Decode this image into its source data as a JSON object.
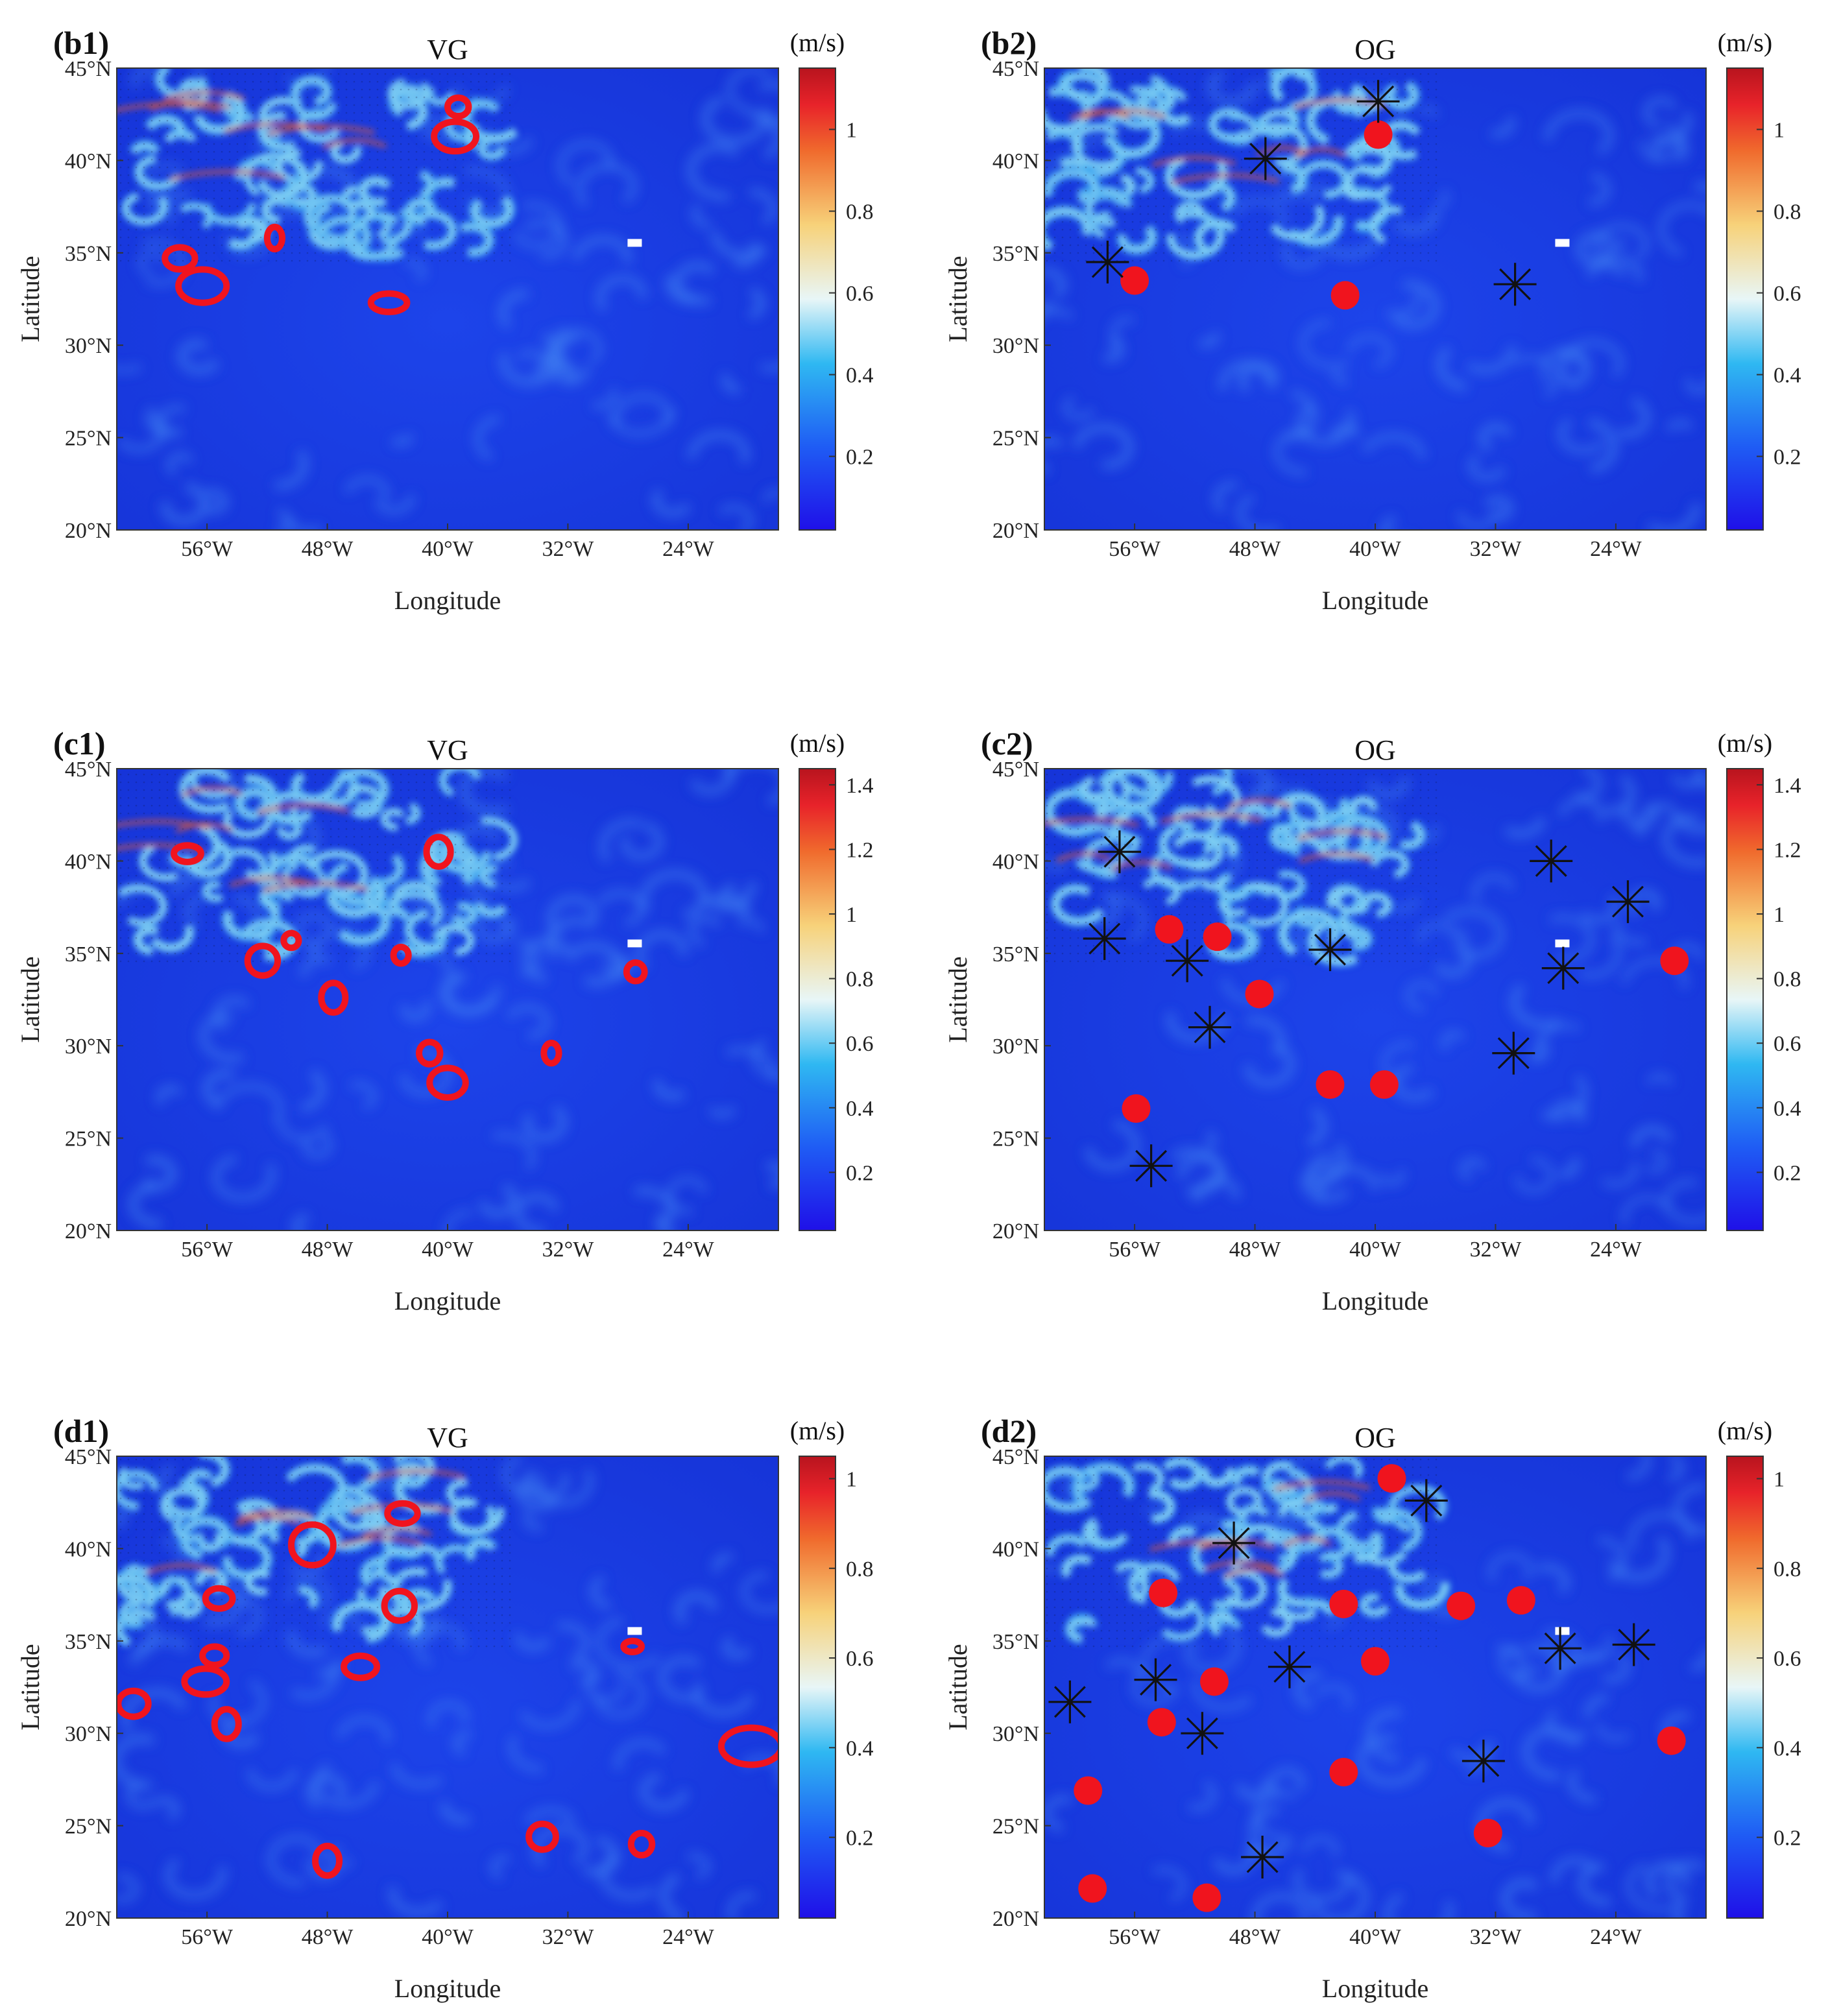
{
  "colors": {
    "ocean_base": "#1a3de6",
    "ocean_deep": "#1228c8",
    "filament_mid": "#3aa6ef",
    "filament_light": "#9fe4f5",
    "filament_hot": "#e85a2a",
    "eddy_red": "#f0141e",
    "asterisk": "#111111"
  },
  "chart_data": [
    {
      "id": "b1",
      "panel_label": "(b1)",
      "title": "VG",
      "unit": "(m/s)",
      "type": "map",
      "xlabel": "Longitude",
      "ylabel": "Latitude",
      "xlim": [
        -62,
        -18
      ],
      "ylim": [
        20,
        45
      ],
      "xticks": [
        {
          "v": -56,
          "label": "56°W"
        },
        {
          "v": -48,
          "label": "48°W"
        },
        {
          "v": -40,
          "label": "40°W"
        },
        {
          "v": -32,
          "label": "32°W"
        },
        {
          "v": -24,
          "label": "24°W"
        }
      ],
      "yticks": [
        {
          "v": 20,
          "label": "20°N"
        },
        {
          "v": 25,
          "label": "25°N"
        },
        {
          "v": 30,
          "label": "30°N"
        },
        {
          "v": 35,
          "label": "35°N"
        },
        {
          "v": 40,
          "label": "40°N"
        },
        {
          "v": 45,
          "label": "45°N"
        }
      ],
      "colorbar": {
        "vmax": 1.15,
        "ticks": [
          0.2,
          0.4,
          0.6,
          0.8,
          1
        ]
      },
      "rings": [
        {
          "lon": -57.8,
          "lat": 34.7,
          "rx": 1.0,
          "ry": 0.6
        },
        {
          "lon": -56.3,
          "lat": 33.2,
          "rx": 1.6,
          "ry": 0.9
        },
        {
          "lon": -51.5,
          "lat": 35.8,
          "rx": 0.5,
          "ry": 0.6
        },
        {
          "lon": -43.9,
          "lat": 32.3,
          "rx": 1.2,
          "ry": 0.5
        },
        {
          "lon": -39.5,
          "lat": 41.3,
          "rx": 1.4,
          "ry": 0.8
        },
        {
          "lon": -39.3,
          "lat": 42.9,
          "rx": 0.7,
          "ry": 0.5
        }
      ],
      "dots": [],
      "stars": []
    },
    {
      "id": "b2",
      "panel_label": "(b2)",
      "title": "OG",
      "unit": "(m/s)",
      "type": "map",
      "xlabel": "Longitude",
      "ylabel": "Latitude",
      "xlim": [
        -62,
        -18
      ],
      "ylim": [
        20,
        45
      ],
      "xticks": [
        {
          "v": -56,
          "label": "56°W"
        },
        {
          "v": -48,
          "label": "48°W"
        },
        {
          "v": -40,
          "label": "40°W"
        },
        {
          "v": -32,
          "label": "32°W"
        },
        {
          "v": -24,
          "label": "24°W"
        }
      ],
      "yticks": [
        {
          "v": 20,
          "label": "20°N"
        },
        {
          "v": 25,
          "label": "25°N"
        },
        {
          "v": 30,
          "label": "30°N"
        },
        {
          "v": 35,
          "label": "35°N"
        },
        {
          "v": 40,
          "label": "40°N"
        },
        {
          "v": 45,
          "label": "45°N"
        }
      ],
      "colorbar": {
        "vmax": 1.15,
        "ticks": [
          0.2,
          0.4,
          0.6,
          0.8,
          1
        ]
      },
      "rings": [],
      "dots": [
        {
          "lon": -56.0,
          "lat": 33.5
        },
        {
          "lon": -42.0,
          "lat": 32.7
        },
        {
          "lon": -39.8,
          "lat": 41.4
        }
      ],
      "stars": [
        {
          "lon": -57.8,
          "lat": 34.5
        },
        {
          "lon": -47.3,
          "lat": 40.1
        },
        {
          "lon": -39.8,
          "lat": 43.2
        },
        {
          "lon": -30.7,
          "lat": 33.3
        }
      ]
    },
    {
      "id": "c1",
      "panel_label": "(c1)",
      "title": "VG",
      "unit": "(m/s)",
      "type": "map",
      "xlabel": "Longitude",
      "ylabel": "Latitude",
      "xlim": [
        -62,
        -18
      ],
      "ylim": [
        20,
        45
      ],
      "xticks": [
        {
          "v": -56,
          "label": "56°W"
        },
        {
          "v": -48,
          "label": "48°W"
        },
        {
          "v": -40,
          "label": "40°W"
        },
        {
          "v": -32,
          "label": "32°W"
        },
        {
          "v": -24,
          "label": "24°W"
        }
      ],
      "yticks": [
        {
          "v": 20,
          "label": "20°N"
        },
        {
          "v": 25,
          "label": "25°N"
        },
        {
          "v": 30,
          "label": "30°N"
        },
        {
          "v": 35,
          "label": "35°N"
        },
        {
          "v": 40,
          "label": "40°N"
        },
        {
          "v": 45,
          "label": "45°N"
        }
      ],
      "colorbar": {
        "vmax": 1.45,
        "ticks": [
          0.2,
          0.4,
          0.6,
          0.8,
          1,
          1.2,
          1.4
        ]
      },
      "rings": [
        {
          "lon": -57.3,
          "lat": 40.4,
          "rx": 0.9,
          "ry": 0.45
        },
        {
          "lon": -50.4,
          "lat": 35.7,
          "rx": 0.5,
          "ry": 0.4
        },
        {
          "lon": -52.3,
          "lat": 34.6,
          "rx": 1.0,
          "ry": 0.8
        },
        {
          "lon": -47.6,
          "lat": 32.6,
          "rx": 0.8,
          "ry": 0.8
        },
        {
          "lon": -43.1,
          "lat": 34.9,
          "rx": 0.5,
          "ry": 0.45
        },
        {
          "lon": -40.6,
          "lat": 40.5,
          "rx": 0.8,
          "ry": 0.8
        },
        {
          "lon": -41.2,
          "lat": 29.6,
          "rx": 0.7,
          "ry": 0.6
        },
        {
          "lon": -40.0,
          "lat": 28.0,
          "rx": 1.2,
          "ry": 0.8
        },
        {
          "lon": -33.1,
          "lat": 29.6,
          "rx": 0.5,
          "ry": 0.55
        },
        {
          "lon": -27.5,
          "lat": 34.0,
          "rx": 0.6,
          "ry": 0.5
        }
      ],
      "dots": [],
      "stars": []
    },
    {
      "id": "c2",
      "panel_label": "(c2)",
      "title": "OG",
      "unit": "(m/s)",
      "type": "map",
      "xlabel": "Longitude",
      "ylabel": "Latitude",
      "xlim": [
        -62,
        -18
      ],
      "ylim": [
        20,
        45
      ],
      "xticks": [
        {
          "v": -56,
          "label": "56°W"
        },
        {
          "v": -48,
          "label": "48°W"
        },
        {
          "v": -40,
          "label": "40°W"
        },
        {
          "v": -32,
          "label": "32°W"
        },
        {
          "v": -24,
          "label": "24°W"
        }
      ],
      "yticks": [
        {
          "v": 20,
          "label": "20°N"
        },
        {
          "v": 25,
          "label": "25°N"
        },
        {
          "v": 30,
          "label": "30°N"
        },
        {
          "v": 35,
          "label": "35°N"
        },
        {
          "v": 40,
          "label": "40°N"
        },
        {
          "v": 45,
          "label": "45°N"
        }
      ],
      "colorbar": {
        "vmax": 1.45,
        "ticks": [
          0.2,
          0.4,
          0.6,
          0.8,
          1,
          1.2,
          1.4
        ]
      },
      "rings": [],
      "dots": [
        {
          "lon": -53.7,
          "lat": 36.3
        },
        {
          "lon": -50.5,
          "lat": 35.9
        },
        {
          "lon": -47.7,
          "lat": 32.8
        },
        {
          "lon": -43.0,
          "lat": 27.9
        },
        {
          "lon": -39.4,
          "lat": 27.9
        },
        {
          "lon": -55.9,
          "lat": 26.6
        },
        {
          "lon": -20.1,
          "lat": 34.6
        }
      ],
      "stars": [
        {
          "lon": -57.0,
          "lat": 40.5
        },
        {
          "lon": -58.0,
          "lat": 35.8
        },
        {
          "lon": -52.5,
          "lat": 34.6
        },
        {
          "lon": -51.0,
          "lat": 31.0
        },
        {
          "lon": -43.0,
          "lat": 35.2
        },
        {
          "lon": -30.8,
          "lat": 29.6
        },
        {
          "lon": -28.3,
          "lat": 40.0
        },
        {
          "lon": -27.5,
          "lat": 34.2
        },
        {
          "lon": -23.2,
          "lat": 37.8
        },
        {
          "lon": -54.9,
          "lat": 23.5
        }
      ]
    },
    {
      "id": "d1",
      "panel_label": "(d1)",
      "title": "VG",
      "unit": "(m/s)",
      "type": "map",
      "xlabel": "Longitude",
      "ylabel": "Latitude",
      "xlim": [
        -62,
        -18
      ],
      "ylim": [
        20,
        45
      ],
      "xticks": [
        {
          "v": -56,
          "label": "56°W"
        },
        {
          "v": -48,
          "label": "48°W"
        },
        {
          "v": -40,
          "label": "40°W"
        },
        {
          "v": -32,
          "label": "32°W"
        },
        {
          "v": -24,
          "label": "24°W"
        }
      ],
      "yticks": [
        {
          "v": 20,
          "label": "20°N"
        },
        {
          "v": 25,
          "label": "25°N"
        },
        {
          "v": 30,
          "label": "30°N"
        },
        {
          "v": 35,
          "label": "35°N"
        },
        {
          "v": 40,
          "label": "40°N"
        },
        {
          "v": 45,
          "label": "45°N"
        }
      ],
      "colorbar": {
        "vmax": 1.05,
        "ticks": [
          0.2,
          0.4,
          0.6,
          0.8,
          1
        ]
      },
      "rings": [
        {
          "lon": -60.9,
          "lat": 31.6,
          "rx": 1.0,
          "ry": 0.7
        },
        {
          "lon": -56.1,
          "lat": 32.8,
          "rx": 1.4,
          "ry": 0.7
        },
        {
          "lon": -55.5,
          "lat": 34.2,
          "rx": 0.8,
          "ry": 0.5
        },
        {
          "lon": -55.2,
          "lat": 37.3,
          "rx": 0.9,
          "ry": 0.55
        },
        {
          "lon": -54.7,
          "lat": 30.5,
          "rx": 0.8,
          "ry": 0.8
        },
        {
          "lon": -49.0,
          "lat": 40.2,
          "rx": 1.4,
          "ry": 1.1
        },
        {
          "lon": -45.8,
          "lat": 33.6,
          "rx": 1.1,
          "ry": 0.6
        },
        {
          "lon": -48.0,
          "lat": 23.1,
          "rx": 0.8,
          "ry": 0.8
        },
        {
          "lon": -43.2,
          "lat": 36.9,
          "rx": 1.0,
          "ry": 0.8
        },
        {
          "lon": -43.0,
          "lat": 41.9,
          "rx": 1.0,
          "ry": 0.55
        },
        {
          "lon": -33.7,
          "lat": 24.4,
          "rx": 0.9,
          "ry": 0.7
        },
        {
          "lon": -27.7,
          "lat": 34.7,
          "rx": 0.6,
          "ry": 0.3
        },
        {
          "lon": -27.1,
          "lat": 24.0,
          "rx": 0.7,
          "ry": 0.6
        },
        {
          "lon": -19.8,
          "lat": 29.3,
          "rx": 2.0,
          "ry": 1.0
        }
      ],
      "dots": [],
      "stars": []
    },
    {
      "id": "d2",
      "panel_label": "(d2)",
      "title": "OG",
      "unit": "(m/s)",
      "type": "map",
      "xlabel": "Longitude",
      "ylabel": "Latitude",
      "xlim": [
        -62,
        -18
      ],
      "ylim": [
        20,
        45
      ],
      "xticks": [
        {
          "v": -56,
          "label": "56°W"
        },
        {
          "v": -48,
          "label": "48°W"
        },
        {
          "v": -40,
          "label": "40°W"
        },
        {
          "v": -32,
          "label": "32°W"
        },
        {
          "v": -24,
          "label": "24°W"
        }
      ],
      "yticks": [
        {
          "v": 20,
          "label": "20°N"
        },
        {
          "v": 25,
          "label": "25°N"
        },
        {
          "v": 30,
          "label": "30°N"
        },
        {
          "v": 35,
          "label": "35°N"
        },
        {
          "v": 40,
          "label": "40°N"
        },
        {
          "v": 45,
          "label": "45°N"
        }
      ],
      "colorbar": {
        "vmax": 1.05,
        "ticks": [
          0.2,
          0.4,
          0.6,
          0.8,
          1
        ]
      },
      "rings": [],
      "dots": [
        {
          "lon": -38.9,
          "lat": 43.8
        },
        {
          "lon": -54.1,
          "lat": 37.6
        },
        {
          "lon": -42.1,
          "lat": 37.0
        },
        {
          "lon": -34.3,
          "lat": 36.9
        },
        {
          "lon": -30.3,
          "lat": 37.2
        },
        {
          "lon": -40.0,
          "lat": 33.9
        },
        {
          "lon": -50.7,
          "lat": 32.8
        },
        {
          "lon": -54.2,
          "lat": 30.6
        },
        {
          "lon": -42.1,
          "lat": 27.9
        },
        {
          "lon": -59.1,
          "lat": 26.9
        },
        {
          "lon": -32.5,
          "lat": 24.6
        },
        {
          "lon": -58.8,
          "lat": 21.6
        },
        {
          "lon": -51.2,
          "lat": 21.1
        },
        {
          "lon": -20.3,
          "lat": 29.6
        }
      ],
      "stars": [
        {
          "lon": -36.6,
          "lat": 42.6
        },
        {
          "lon": -49.4,
          "lat": 40.3
        },
        {
          "lon": -27.7,
          "lat": 34.6
        },
        {
          "lon": -22.8,
          "lat": 34.8
        },
        {
          "lon": -45.7,
          "lat": 33.6
        },
        {
          "lon": -54.6,
          "lat": 32.9
        },
        {
          "lon": -60.3,
          "lat": 31.7
        },
        {
          "lon": -51.5,
          "lat": 30.0
        },
        {
          "lon": -32.8,
          "lat": 28.5
        },
        {
          "lon": -47.5,
          "lat": 23.3
        }
      ]
    }
  ]
}
